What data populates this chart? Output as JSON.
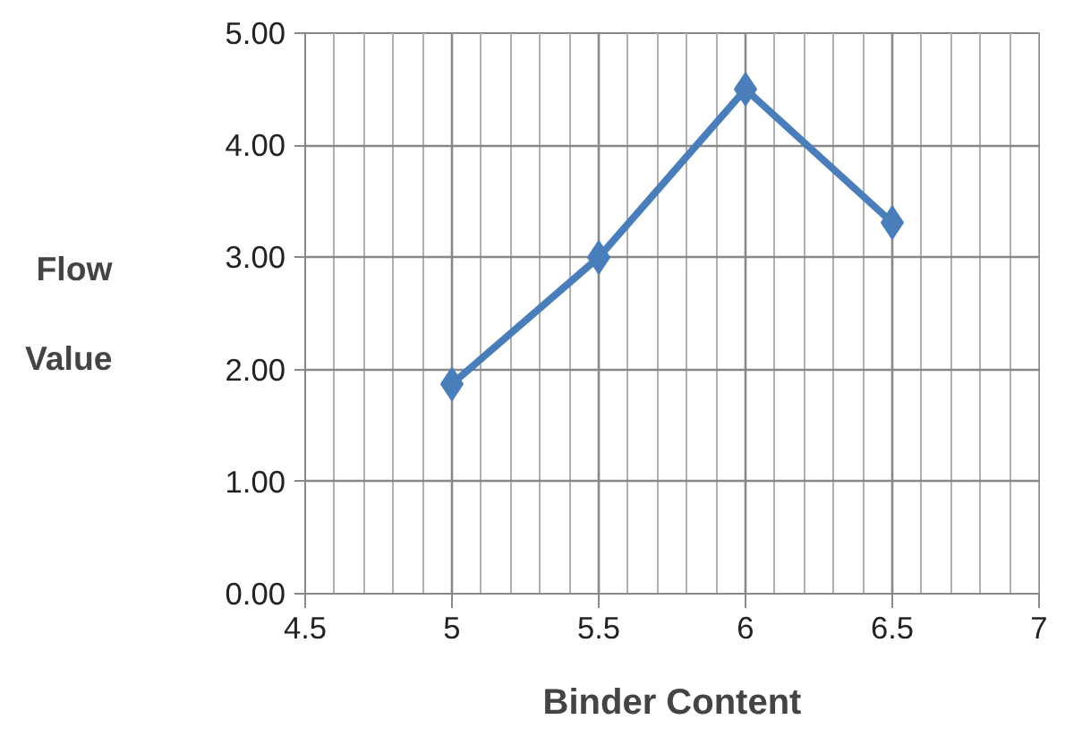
{
  "chart_data": {
    "type": "line",
    "xlabel": "Binder Content",
    "ylabel": "Flow Value",
    "x": [
      5,
      5.5,
      6,
      6.5
    ],
    "series": [
      {
        "color": "#4a7ebb",
        "values": [
          1.87,
          3.0,
          4.5,
          3.31
        ]
      }
    ],
    "xlim": [
      4.5,
      7
    ],
    "xticks": [
      4.5,
      5,
      5.5,
      6,
      6.5,
      7
    ],
    "ylim": [
      0,
      5
    ],
    "yticks": [
      {
        "value": 0,
        "label": "0.00"
      },
      {
        "value": 1,
        "label": "1.00"
      },
      {
        "value": 2,
        "label": "2.00"
      },
      {
        "value": 3,
        "label": "3.00"
      },
      {
        "value": 4,
        "label": "4.00"
      },
      {
        "value": 5,
        "label": "5.00"
      }
    ],
    "grid": true,
    "marker": "diamond",
    "line_style": "solid"
  }
}
